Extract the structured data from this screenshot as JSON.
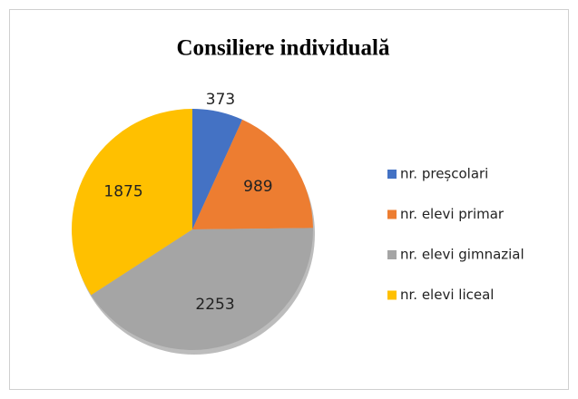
{
  "chart_data": {
    "type": "pie",
    "title": "Consiliere individuală",
    "categories": [
      "nr. preșcolari",
      "nr. elevi primar",
      "nr. elevi gimnazial",
      "nr. elevi liceal"
    ],
    "values": [
      373,
      989,
      2253,
      1875
    ],
    "colors": [
      "#4472c4",
      "#ed7d31",
      "#a5a5a5",
      "#ffc000"
    ],
    "legend": "right"
  }
}
